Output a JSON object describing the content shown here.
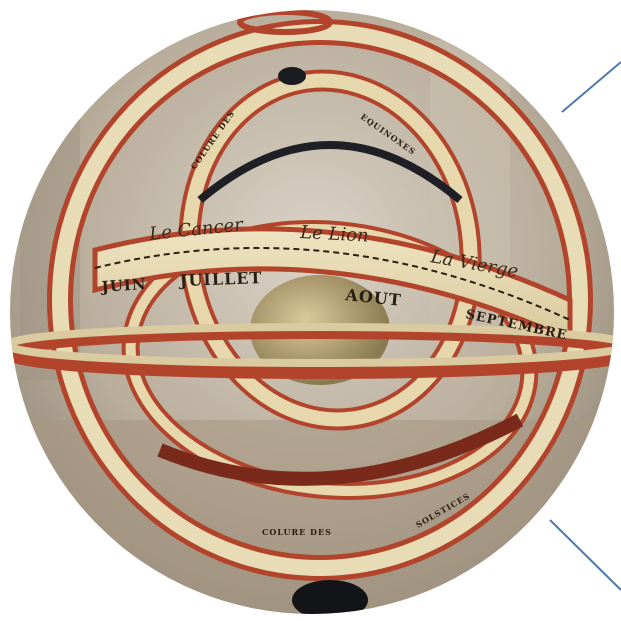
{
  "photo": {
    "subject": "armillary-sphere",
    "band_labels": {
      "sign_cancer": "Le Cancer",
      "sign_leo": "Le Lion",
      "sign_virgo": "La Vierge",
      "month_juin": "JUIN",
      "month_juillet": "JUILLET",
      "month_aout": "AOUT",
      "month_septembre": "SEPTEMBRE"
    },
    "ring_labels": {
      "colure": "COLURE DES",
      "equinoxes": "EQUINOXES",
      "colure_lower": "COLURE DES",
      "solstices": "SOLSTICES"
    },
    "colors": {
      "background": "#ffffff",
      "ring_red": "#b2442c",
      "ring_cream": "#e8dcb6",
      "pointer_line": "#4a7ab0",
      "base_knob": "#121418"
    }
  }
}
